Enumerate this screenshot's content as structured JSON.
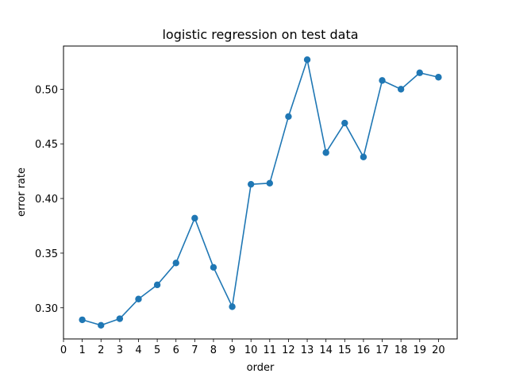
{
  "chart_data": {
    "type": "line",
    "title": "logistic regression on test data",
    "xlabel": "order",
    "ylabel": "error rate",
    "x": [
      1,
      2,
      3,
      4,
      5,
      6,
      7,
      8,
      9,
      10,
      11,
      12,
      13,
      14,
      15,
      16,
      17,
      18,
      19,
      20
    ],
    "series": [
      {
        "values": [
          0.289,
          0.284,
          0.29,
          0.308,
          0.321,
          0.341,
          0.382,
          0.337,
          0.301,
          0.413,
          0.414,
          0.475,
          0.527,
          0.442,
          0.469,
          0.438,
          0.508,
          0.5,
          0.515,
          0.511
        ],
        "color": "#1f77b4",
        "marker": "circle"
      }
    ],
    "xlim": [
      0,
      21
    ],
    "ylim": [
      0.2715,
      0.5395
    ],
    "xticks": [
      "0",
      "1",
      "2",
      "3",
      "4",
      "5",
      "6",
      "7",
      "8",
      "9",
      "10",
      "11",
      "12",
      "13",
      "14",
      "15",
      "16",
      "17",
      "18",
      "19",
      "20"
    ],
    "yticks": [
      "0.30",
      "0.35",
      "0.40",
      "0.45",
      "0.50"
    ],
    "grid": false,
    "legend": "none"
  }
}
